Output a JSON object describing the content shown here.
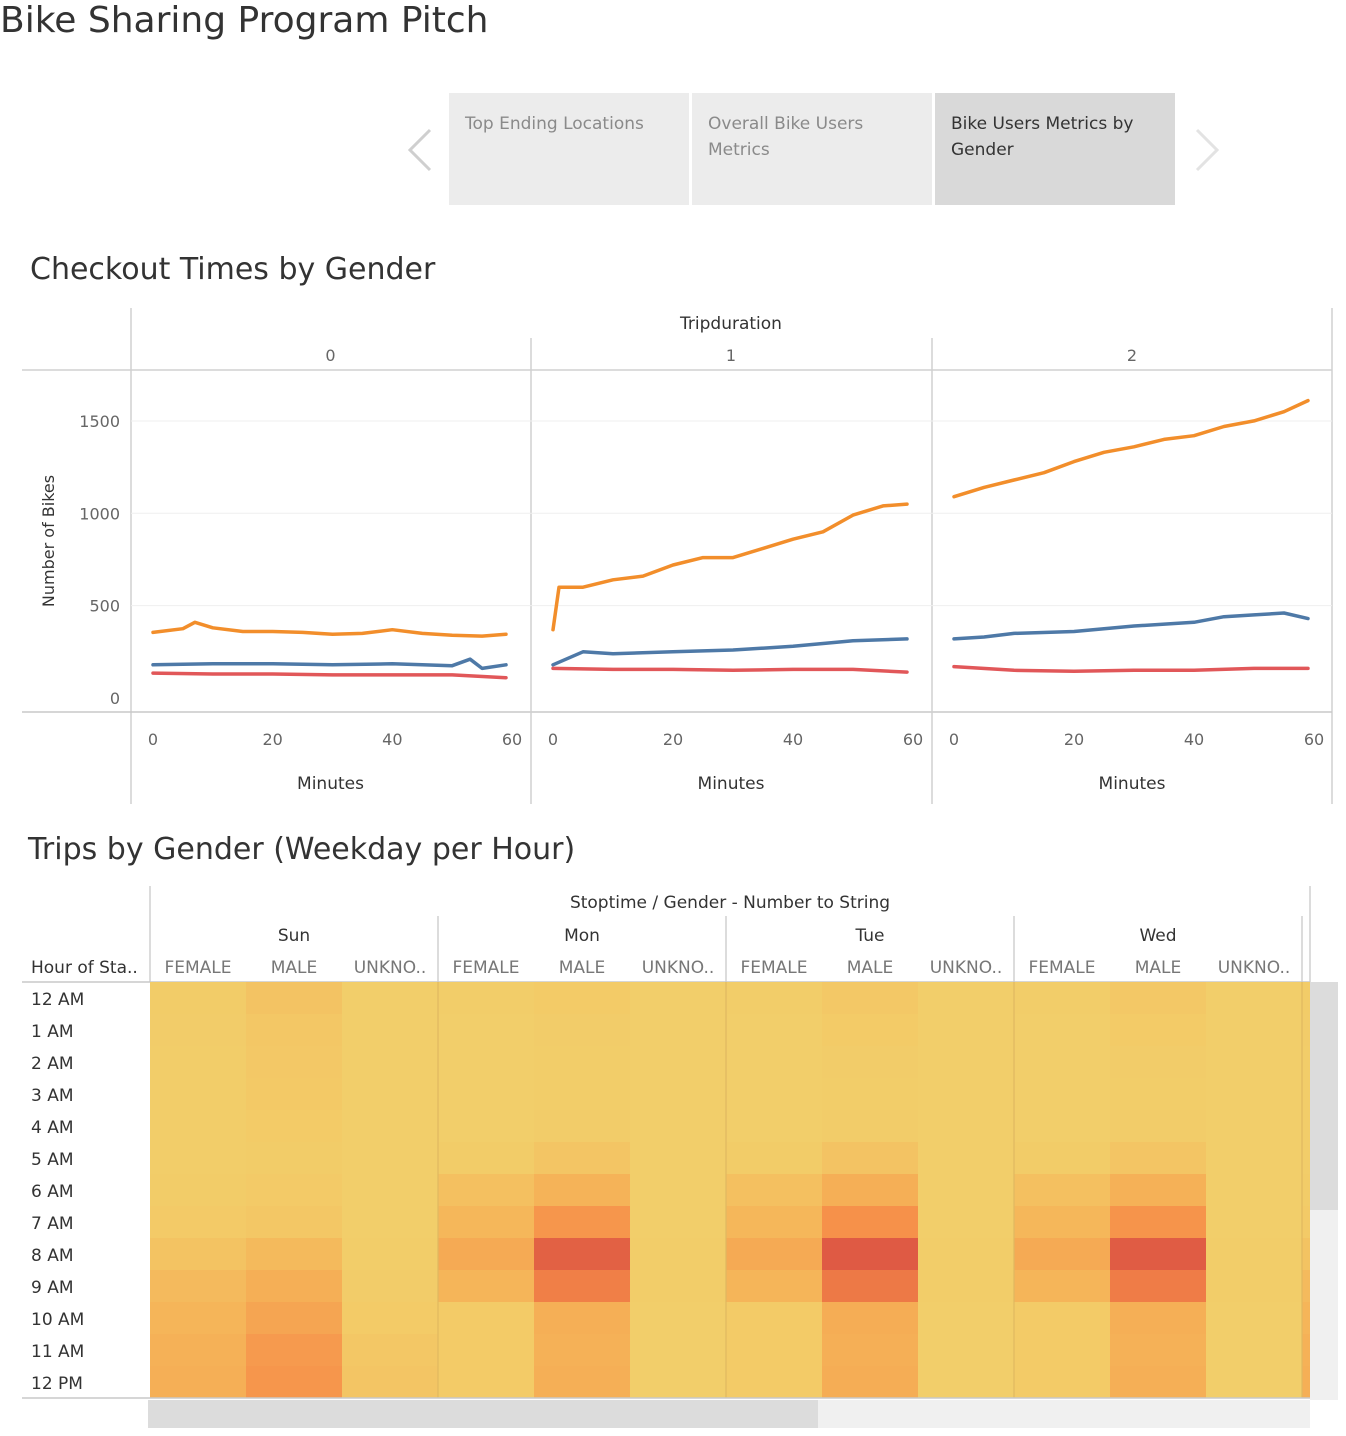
{
  "story": {
    "title": "Bike Sharing Program Pitch",
    "points": [
      {
        "label": "Top Ending Locations",
        "active": false
      },
      {
        "label": "Overall Bike Users Metrics",
        "active": false
      },
      {
        "label": "Bike Users Metrics by Gender",
        "active": true
      }
    ],
    "prev_icon": "chevron-left-icon",
    "next_icon": "chevron-right-icon"
  },
  "checkout_chart": {
    "title": "Checkout Times by Gender",
    "colors": {
      "male": "#f28e2b",
      "unknown": "#4e79a7",
      "female": "#e15759"
    },
    "chart_data": {
      "type": "line",
      "column_header": "Tripduration",
      "panels": [
        "0",
        "1",
        "2"
      ],
      "xlabel": "Minutes",
      "ylabel": "Number of Bikes",
      "xlim": [
        0,
        60
      ],
      "ylim": [
        0,
        1700
      ],
      "y_ticks": [
        0,
        500,
        1000,
        1500
      ],
      "x_ticks": [
        0,
        20,
        40,
        60
      ],
      "series": [
        {
          "key": "male",
          "panels": [
            {
              "x": [
                0,
                5,
                7,
                10,
                15,
                20,
                25,
                30,
                35,
                40,
                45,
                50,
                55,
                59
              ],
              "y": [
                355,
                375,
                410,
                380,
                360,
                360,
                355,
                345,
                350,
                370,
                350,
                340,
                335,
                345
              ]
            },
            {
              "x": [
                0,
                1,
                5,
                10,
                15,
                20,
                25,
                30,
                35,
                40,
                45,
                50,
                55,
                59
              ],
              "y": [
                370,
                600,
                600,
                640,
                660,
                720,
                760,
                760,
                810,
                860,
                900,
                990,
                1040,
                1050
              ]
            },
            {
              "x": [
                0,
                5,
                10,
                15,
                20,
                25,
                30,
                35,
                40,
                45,
                50,
                55,
                59
              ],
              "y": [
                1090,
                1140,
                1180,
                1220,
                1280,
                1330,
                1360,
                1400,
                1420,
                1470,
                1500,
                1550,
                1610
              ]
            }
          ]
        },
        {
          "key": "unknown",
          "panels": [
            {
              "x": [
                0,
                10,
                20,
                30,
                40,
                50,
                53,
                55,
                59
              ],
              "y": [
                180,
                185,
                185,
                180,
                185,
                175,
                210,
                160,
                180
              ]
            },
            {
              "x": [
                0,
                5,
                10,
                20,
                30,
                40,
                50,
                59
              ],
              "y": [
                180,
                250,
                240,
                250,
                260,
                280,
                310,
                320
              ]
            },
            {
              "x": [
                0,
                5,
                10,
                20,
                30,
                40,
                45,
                50,
                55,
                59
              ],
              "y": [
                320,
                330,
                350,
                360,
                390,
                410,
                440,
                450,
                460,
                430
              ]
            }
          ]
        },
        {
          "key": "female",
          "panels": [
            {
              "x": [
                0,
                10,
                20,
                30,
                40,
                50,
                59
              ],
              "y": [
                135,
                130,
                130,
                125,
                125,
                125,
                110
              ]
            },
            {
              "x": [
                0,
                10,
                20,
                30,
                40,
                50,
                59
              ],
              "y": [
                160,
                155,
                155,
                150,
                155,
                155,
                140
              ]
            },
            {
              "x": [
                0,
                10,
                20,
                30,
                40,
                50,
                59
              ],
              "y": [
                170,
                150,
                145,
                150,
                150,
                160,
                160
              ]
            }
          ]
        }
      ]
    }
  },
  "trips_chart": {
    "title": "Trips by Gender (Weekday per Hour)",
    "chart_data": {
      "type": "heatmap",
      "column_header": "Stoptime / Gender - Number to String",
      "row_header": "Hour of Sta..",
      "days": [
        "Sun",
        "Mon",
        "Tue",
        "Wed"
      ],
      "genders": [
        "FEMALE",
        "MALE",
        "UNKNO.."
      ],
      "hours": [
        "12 AM",
        "1 AM",
        "2 AM",
        "3 AM",
        "4 AM",
        "5 AM",
        "6 AM",
        "7 AM",
        "8 AM",
        "9 AM",
        "10 AM",
        "11 AM",
        "12 PM"
      ],
      "color_scale": [
        "#f2d06b",
        "#f5b257",
        "#f68c48",
        "#dc5343"
      ],
      "values": [
        [
          0.05,
          0.14,
          0.02,
          0.03,
          0.06,
          0.02,
          0.03,
          0.09,
          0.02,
          0.03,
          0.09,
          0.02
        ],
        [
          0.04,
          0.1,
          0.02,
          0.02,
          0.04,
          0.02,
          0.02,
          0.06,
          0.02,
          0.02,
          0.06,
          0.02
        ],
        [
          0.03,
          0.09,
          0.02,
          0.02,
          0.03,
          0.02,
          0.02,
          0.04,
          0.02,
          0.02,
          0.04,
          0.02
        ],
        [
          0.03,
          0.08,
          0.02,
          0.02,
          0.03,
          0.02,
          0.02,
          0.03,
          0.02,
          0.02,
          0.03,
          0.02
        ],
        [
          0.03,
          0.06,
          0.02,
          0.02,
          0.04,
          0.02,
          0.02,
          0.04,
          0.02,
          0.02,
          0.04,
          0.02
        ],
        [
          0.03,
          0.05,
          0.02,
          0.05,
          0.12,
          0.02,
          0.05,
          0.14,
          0.02,
          0.05,
          0.12,
          0.02
        ],
        [
          0.05,
          0.07,
          0.02,
          0.18,
          0.32,
          0.02,
          0.18,
          0.36,
          0.02,
          0.18,
          0.34,
          0.02
        ],
        [
          0.07,
          0.1,
          0.02,
          0.28,
          0.58,
          0.02,
          0.28,
          0.62,
          0.02,
          0.28,
          0.6,
          0.02
        ],
        [
          0.15,
          0.25,
          0.03,
          0.4,
          0.92,
          0.03,
          0.4,
          0.96,
          0.03,
          0.4,
          0.95,
          0.03
        ],
        [
          0.24,
          0.36,
          0.04,
          0.3,
          0.74,
          0.03,
          0.3,
          0.78,
          0.03,
          0.3,
          0.76,
          0.03
        ],
        [
          0.3,
          0.45,
          0.06,
          0.06,
          0.36,
          0.02,
          0.06,
          0.38,
          0.02,
          0.06,
          0.36,
          0.02
        ],
        [
          0.34,
          0.54,
          0.1,
          0.06,
          0.34,
          0.02,
          0.06,
          0.36,
          0.02,
          0.06,
          0.34,
          0.02
        ],
        [
          0.36,
          0.58,
          0.12,
          0.06,
          0.36,
          0.02,
          0.06,
          0.38,
          0.02,
          0.06,
          0.36,
          0.02
        ]
      ]
    }
  }
}
